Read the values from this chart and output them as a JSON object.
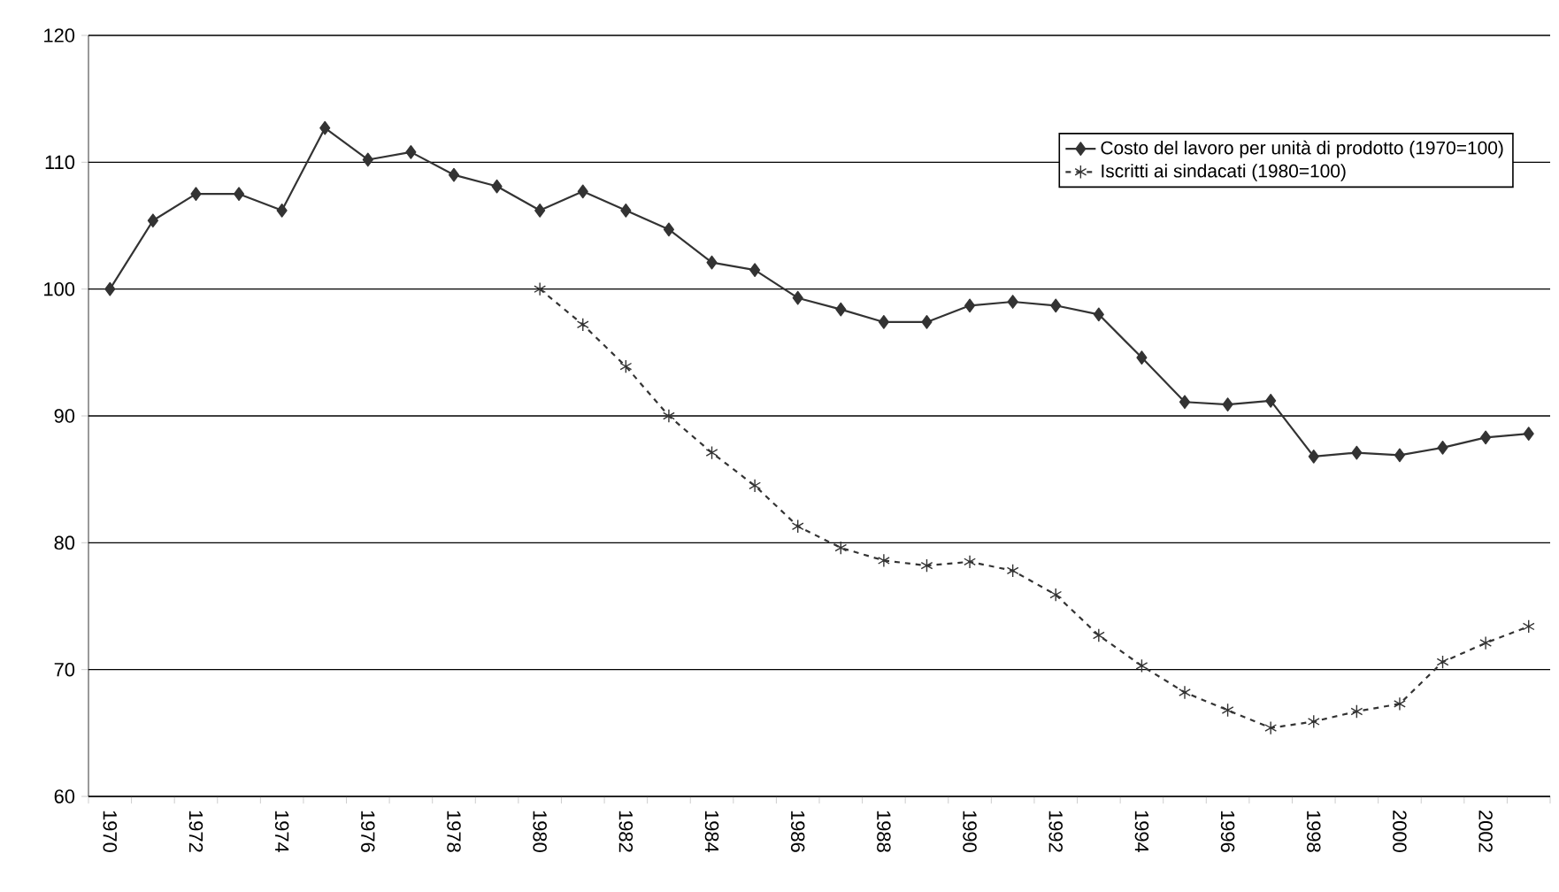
{
  "chart_data": {
    "type": "line",
    "categories": [
      "1970",
      null,
      "1972",
      null,
      "1974",
      null,
      "1976",
      null,
      "1978",
      null,
      "1980",
      null,
      "1982",
      null,
      "1984",
      null,
      "1986",
      null,
      "1988",
      null,
      "1990",
      null,
      "1992",
      null,
      "1994",
      null,
      "1996",
      null,
      "1998",
      null,
      "2000",
      null,
      "2002",
      null
    ],
    "series": [
      {
        "name": "Costo del lavoro per unità di prodotto (1970=100)",
        "color": "#333333",
        "marker": "diamond",
        "line_style": "solid",
        "values": [
          100,
          105.4,
          107.5,
          107.5,
          106.2,
          112.7,
          110.2,
          110.8,
          109.0,
          108.1,
          106.2,
          107.7,
          106.2,
          104.7,
          102.1,
          101.5,
          99.3,
          98.4,
          97.4,
          97.4,
          98.7,
          99.0,
          98.7,
          98.0,
          94.6,
          91.1,
          90.9,
          91.2,
          86.8,
          87.1,
          86.9,
          87.5,
          88.3,
          88.6
        ]
      },
      {
        "name": "Iscritti ai sindacati (1980=100)",
        "color": "#333333",
        "marker": "cross",
        "line_style": "dashed",
        "values": [
          null,
          null,
          null,
          null,
          null,
          null,
          null,
          null,
          null,
          null,
          100,
          97.2,
          93.9,
          90.0,
          87.1,
          84.5,
          81.3,
          79.6,
          78.6,
          78.2,
          78.5,
          77.8,
          75.9,
          72.7,
          70.3,
          68.2,
          66.8,
          65.4,
          65.9,
          66.7,
          67.3,
          70.6,
          72.1,
          73.4
        ]
      }
    ],
    "ylim": [
      60,
      120
    ],
    "yticks": [
      60,
      70,
      80,
      90,
      100,
      110,
      120
    ],
    "grid": "y",
    "legend": "top right"
  }
}
